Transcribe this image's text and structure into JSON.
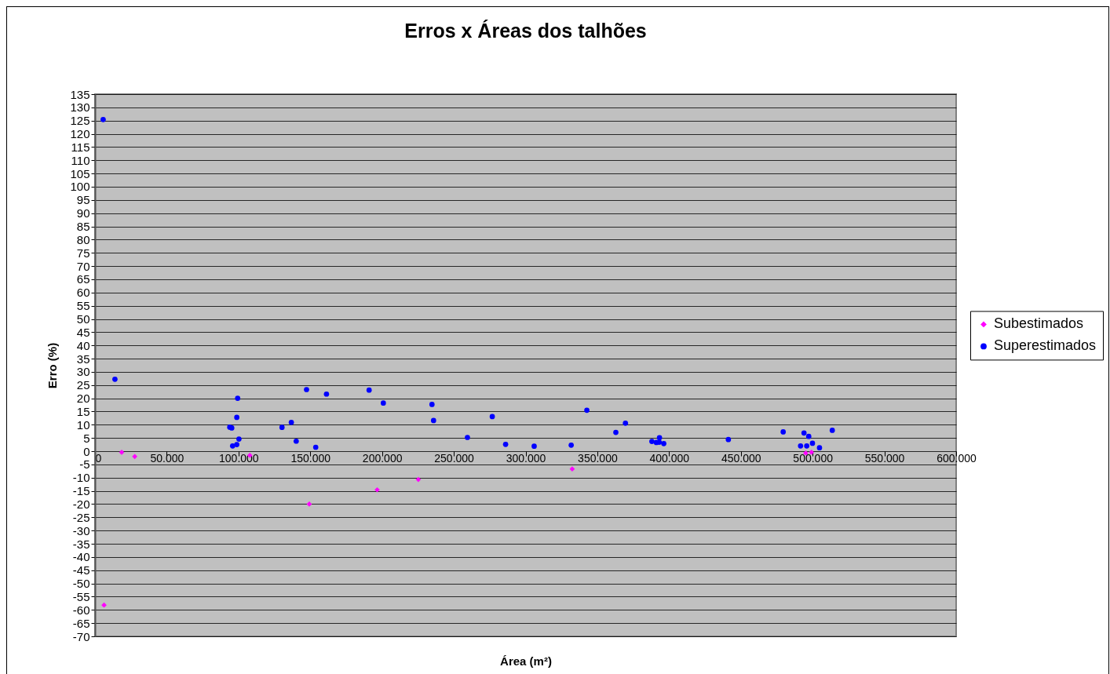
{
  "chart_data": {
    "type": "scatter",
    "title": "Erros x Áreas dos talhões",
    "xlabel": "Área (m²)",
    "ylabel": "Erro (%)",
    "xlim": [
      0,
      600000
    ],
    "xticks": [
      0,
      {
        "value": 50000,
        "label": "50.000"
      },
      {
        "value": 100000,
        "label": "100.000"
      },
      {
        "value": 150000,
        "label": "150.000"
      },
      {
        "value": 200000,
        "label": "200.000"
      },
      {
        "value": 250000,
        "label": "250.000"
      },
      {
        "value": 300000,
        "label": "300.000"
      },
      {
        "value": 350000,
        "label": "350.000"
      },
      {
        "value": 400000,
        "label": "400.000"
      },
      {
        "value": 450000,
        "label": "450.000"
      },
      {
        "value": 500000,
        "label": "500.000"
      },
      {
        "value": 550000,
        "label": "550.000"
      },
      {
        "value": 600000,
        "label": "600.000"
      }
    ],
    "ylim": [
      -70,
      135
    ],
    "yticks": [
      -70,
      -65,
      -60,
      -55,
      -50,
      -45,
      -40,
      -35,
      -30,
      -25,
      -20,
      -15,
      -10,
      -5,
      0,
      5,
      10,
      15,
      20,
      25,
      30,
      35,
      40,
      45,
      50,
      55,
      60,
      65,
      70,
      75,
      80,
      85,
      90,
      95,
      100,
      105,
      110,
      115,
      120,
      125,
      130,
      135
    ],
    "grid": "y",
    "legend": "right",
    "series": [
      {
        "name": "Subestimados",
        "color": "#ff00ff",
        "marker": "diamond",
        "x": [
          6300,
          18600,
          27700,
          107900,
          149300,
          196600,
          225300,
          332500,
          495200,
          499200
        ],
        "values": [
          -58.2,
          -0.4,
          -2.0,
          -1.6,
          -20.0,
          -14.6,
          -10.7,
          -6.7,
          -0.7,
          -0.4
        ]
      },
      {
        "name": "Superestimados",
        "color": "#0000ff",
        "marker": "circle",
        "x": [
          5700,
          13900,
          93900,
          95300,
          99400,
          98800,
          100300,
          95900,
          98800,
          130300,
          136800,
          140200,
          147400,
          153800,
          161300,
          191000,
          200900,
          234800,
          235900,
          259500,
          276800,
          286100,
          306000,
          331800,
          342700,
          362900,
          369600,
          388000,
          391100,
          393300,
          393100,
          396300,
          441300,
          479500,
          494000,
          497300,
          499900,
          491600,
          495900,
          504800,
          513700
        ],
        "values": [
          125.4,
          27.2,
          9.1,
          8.8,
          20.0,
          12.8,
          4.6,
          2.0,
          2.5,
          9.0,
          10.9,
          3.8,
          23.3,
          1.5,
          21.6,
          23.1,
          18.2,
          17.7,
          11.6,
          5.2,
          13.1,
          2.6,
          1.9,
          2.3,
          15.5,
          7.1,
          10.6,
          3.7,
          3.3,
          5.1,
          3.4,
          2.9,
          4.4,
          7.3,
          6.9,
          5.6,
          3.0,
          2.0,
          2.0,
          1.3,
          7.9
        ]
      }
    ]
  }
}
